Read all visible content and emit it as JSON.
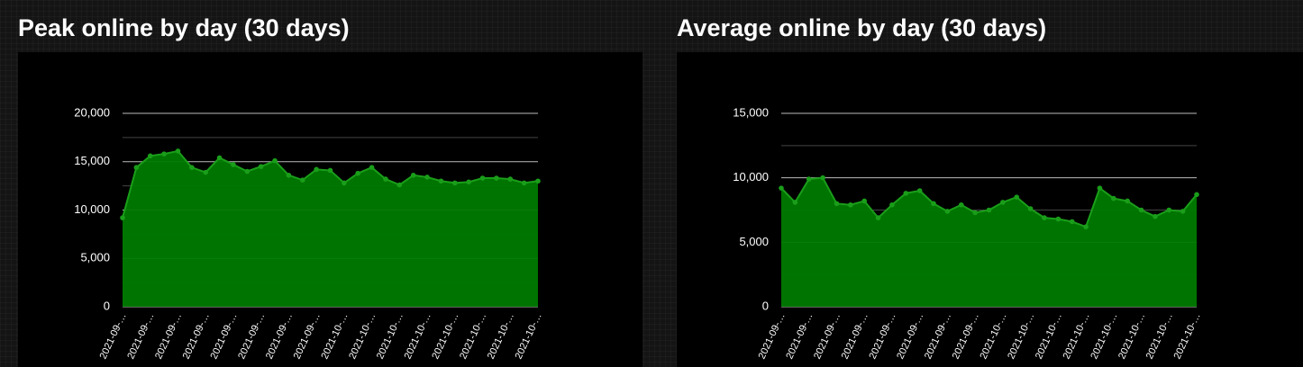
{
  "chart_data": [
    {
      "type": "area",
      "title": "Peak online by day (30 days)",
      "color": "#1a9e1a",
      "categories": [
        "2021-09-…",
        null,
        "2021-09-…",
        null,
        "2021-09-…",
        null,
        "2021-09-…",
        null,
        "2021-09-…",
        null,
        "2021-09-…",
        null,
        "2021-09-…",
        null,
        "2021-09-…",
        null,
        "2021-10-…",
        null,
        "2021-10-…",
        null,
        "2021-10-…",
        null,
        "2021-10-…",
        null,
        "2021-10-…",
        null,
        "2021-10-…",
        null,
        "2021-10-…",
        null,
        "2021-10-…"
      ],
      "values": [
        9200,
        14400,
        15600,
        15800,
        16100,
        14400,
        13900,
        15400,
        14700,
        14000,
        14500,
        15100,
        13600,
        13100,
        14200,
        14100,
        12800,
        13800,
        14400,
        13200,
        12600,
        13600,
        13400,
        13000,
        12800,
        12900,
        13300,
        13300,
        13200,
        12800,
        13000
      ],
      "ylim": [
        0,
        20000
      ],
      "yticks": [
        0,
        {
          "value": 5000,
          "label": "5,000"
        },
        {
          "value": 10000,
          "label": "10,000"
        },
        {
          "value": 15000,
          "label": "15,000"
        },
        {
          "value": 20000,
          "label": "20,000"
        }
      ]
    },
    {
      "type": "area",
      "title": "Average online by day (30 days)",
      "color": "#1a9e1a",
      "categories": [
        "2021-09-…",
        null,
        "2021-09-…",
        null,
        "2021-09-…",
        null,
        "2021-09-…",
        null,
        "2021-09-…",
        null,
        "2021-09-…",
        null,
        "2021-09-…",
        null,
        "2021-09-…",
        null,
        "2021-10-…",
        null,
        "2021-10-…",
        null,
        "2021-10-…",
        null,
        "2021-10-…",
        null,
        "2021-10-…",
        null,
        "2021-10-…",
        null,
        "2021-10-…",
        null,
        "2021-10-…"
      ],
      "values": [
        9200,
        8100,
        9900,
        10000,
        8000,
        7900,
        8200,
        6900,
        7900,
        8800,
        9000,
        8000,
        7400,
        7900,
        7300,
        7500,
        8100,
        8500,
        7600,
        6900,
        6800,
        6600,
        6200,
        9200,
        8400,
        8200,
        7500,
        7000,
        7500,
        7400,
        8700
      ],
      "ylim": [
        0,
        15000
      ],
      "yticks": [
        0,
        {
          "value": 5000,
          "label": "5,000"
        },
        {
          "value": 10000,
          "label": "10,000"
        },
        {
          "value": 15000,
          "label": "15,000"
        }
      ]
    }
  ]
}
